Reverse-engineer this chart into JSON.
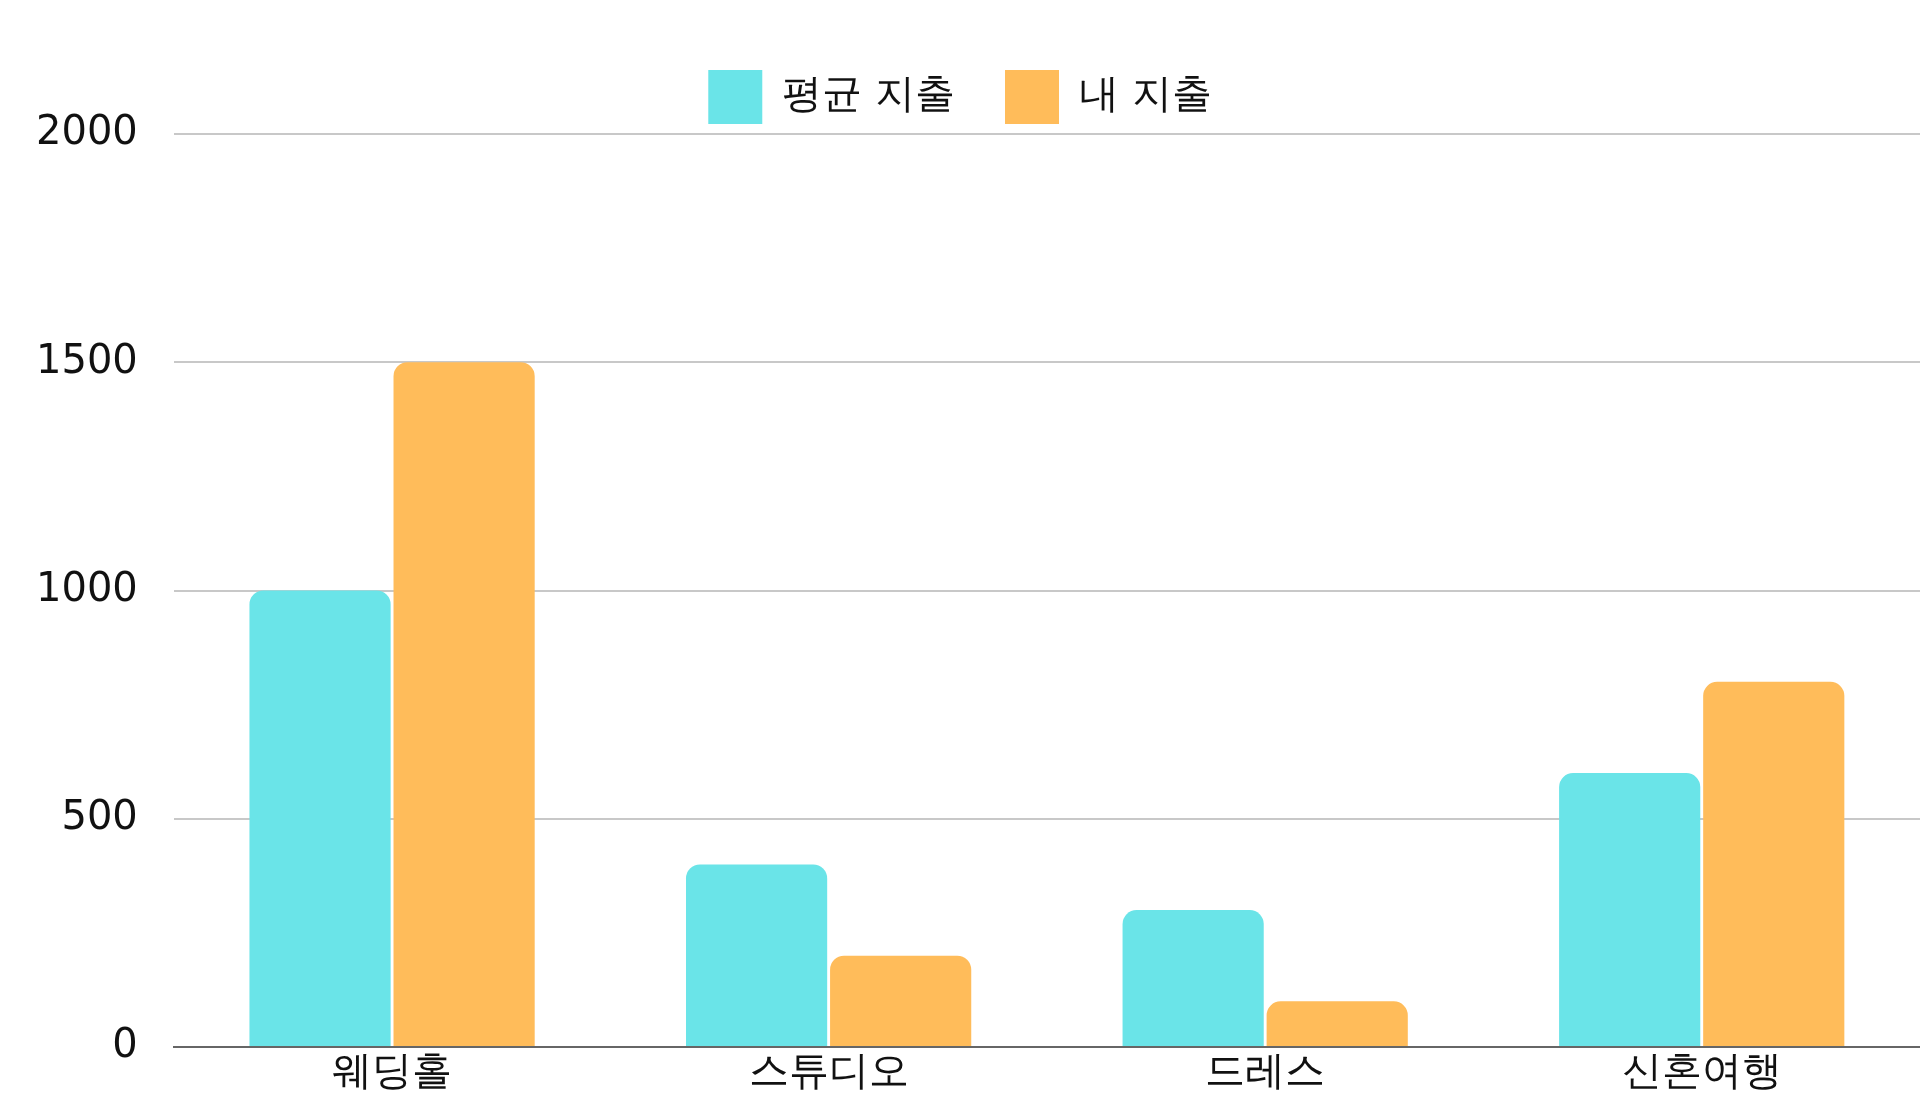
{
  "chart_data": {
    "type": "bar",
    "categories": [
      "웨딩홀",
      "스튜디오",
      "드레스",
      "신혼여행"
    ],
    "series": [
      {
        "name": "평균 지출",
        "color": "#6ae4e8",
        "values": [
          1000,
          400,
          300,
          600
        ]
      },
      {
        "name": "내 지출",
        "color": "#ffbc5a",
        "values": [
          1500,
          200,
          100,
          800
        ]
      }
    ],
    "ylim": [
      0,
      2000
    ],
    "yticks": [
      0,
      500,
      1000,
      1500,
      2000
    ],
    "grid": "y",
    "legend": "top"
  }
}
